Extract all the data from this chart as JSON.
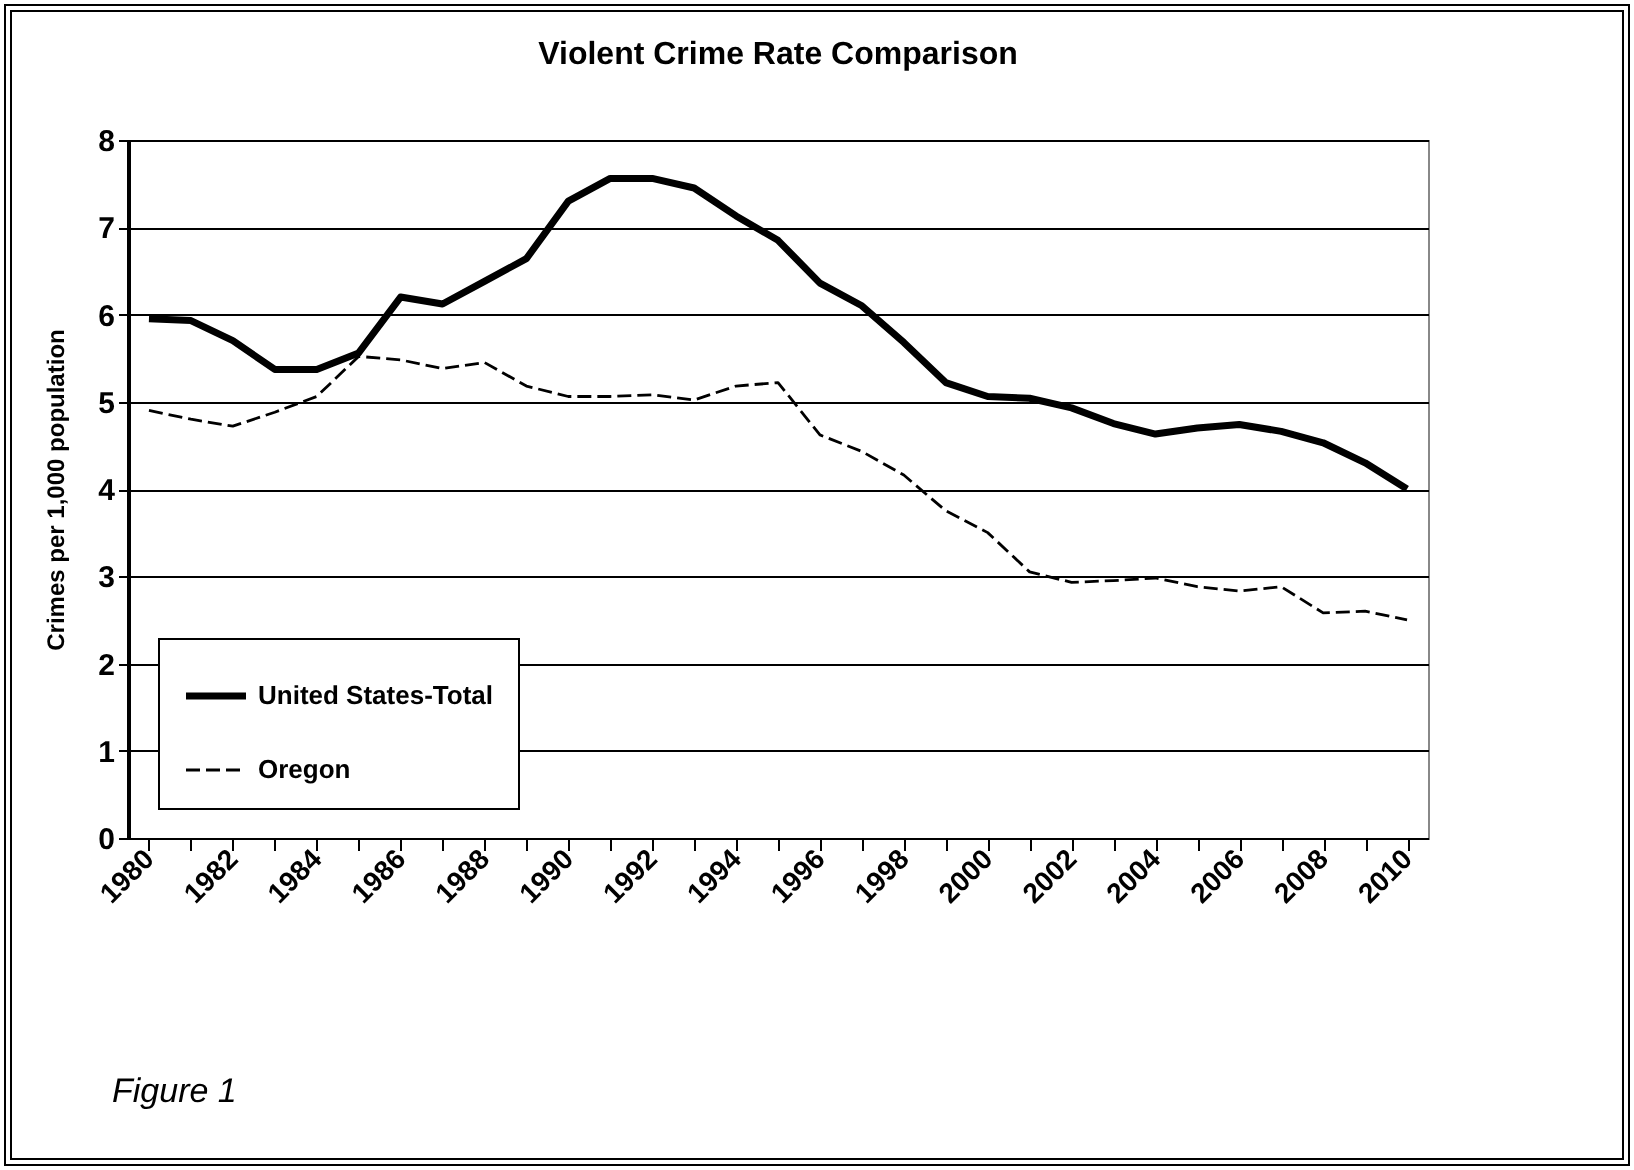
{
  "chart_data": {
    "type": "line",
    "title": "Violent Crime Rate Comparison",
    "ylabel": "Crimes per 1,000 population",
    "categories": [
      "1980",
      null,
      "1982",
      null,
      "1984",
      null,
      "1986",
      null,
      "1988",
      null,
      "1990",
      null,
      "1992",
      null,
      "1994",
      null,
      "1996",
      null,
      "1998",
      null,
      "2000",
      null,
      "2002",
      null,
      "2004",
      null,
      "2006",
      null,
      "2008",
      null,
      "2010"
    ],
    "series": [
      {
        "name": "United States-Total",
        "color": "#000000",
        "line_style": "solid",
        "values": [
          5.95,
          5.93,
          5.7,
          5.37,
          5.37,
          5.56,
          6.2,
          6.12,
          6.38,
          6.64,
          7.3,
          7.56,
          7.56,
          7.45,
          7.13,
          6.85,
          6.36,
          6.1,
          5.68,
          5.22,
          5.06,
          5.04,
          4.93,
          4.75,
          4.63,
          4.7,
          4.74,
          4.66,
          4.53,
          4.3,
          4.0
        ]
      },
      {
        "name": "Oregon",
        "color": "#000000",
        "line_style": "dashed",
        "values": [
          4.9,
          4.8,
          4.72,
          4.88,
          5.06,
          5.52,
          5.48,
          5.38,
          5.45,
          5.18,
          5.06,
          5.06,
          5.08,
          5.02,
          5.18,
          5.22,
          4.62,
          4.43,
          4.16,
          3.75,
          3.5,
          3.05,
          2.93,
          2.95,
          2.98,
          2.88,
          2.83,
          2.88,
          2.58,
          2.6,
          2.5
        ]
      }
    ],
    "ylim": [
      0,
      8
    ],
    "yticks": [
      0,
      1,
      2,
      3,
      4,
      5,
      6,
      7,
      8
    ],
    "grid": "y",
    "legend": "bottom left",
    "marker": "none",
    "annotations": [
      "Figure 1"
    ]
  }
}
